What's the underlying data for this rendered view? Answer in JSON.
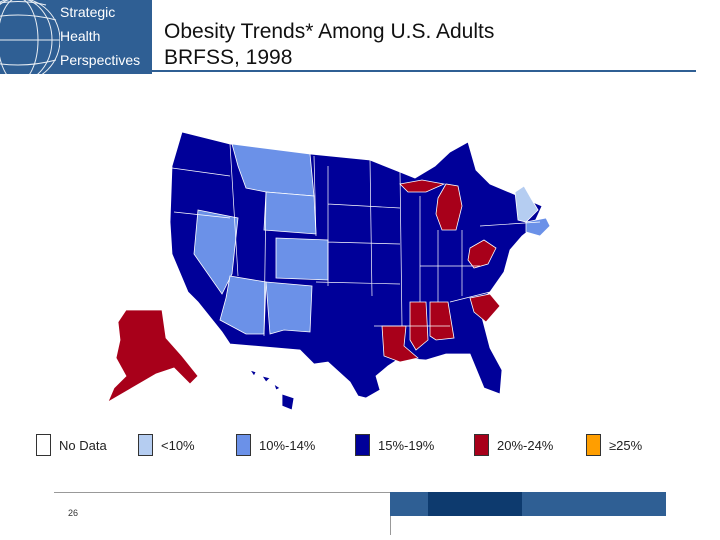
{
  "logo": {
    "lines": [
      "Strategic",
      "Health",
      "Perspectives"
    ],
    "bg": "#2f5f94"
  },
  "title": {
    "line1": "Obesity Trends* Among U.S. Adults",
    "line2": "BRFSS, 1998"
  },
  "colors": {
    "nodata": "#ffffff",
    "lt10": "#b5cdf1",
    "c10_14": "#6b91e8",
    "c15_19": "#000099",
    "c20_24": "#a8001a",
    "c25": "#ff9e00"
  },
  "legend": [
    {
      "label": "No Data",
      "color": "#ffffff"
    },
    {
      "label": "<10%",
      "color": "#b5cdf1"
    },
    {
      "label": "10%-14%",
      "color": "#6b91e8"
    },
    {
      "label": "15%-19%",
      "color": "#000099"
    },
    {
      "label": "20%-24%",
      "color": "#a8001a"
    },
    {
      "label": "≥25%",
      "color": "#ff9e00"
    }
  ],
  "footer": {
    "page_number": "26"
  }
}
